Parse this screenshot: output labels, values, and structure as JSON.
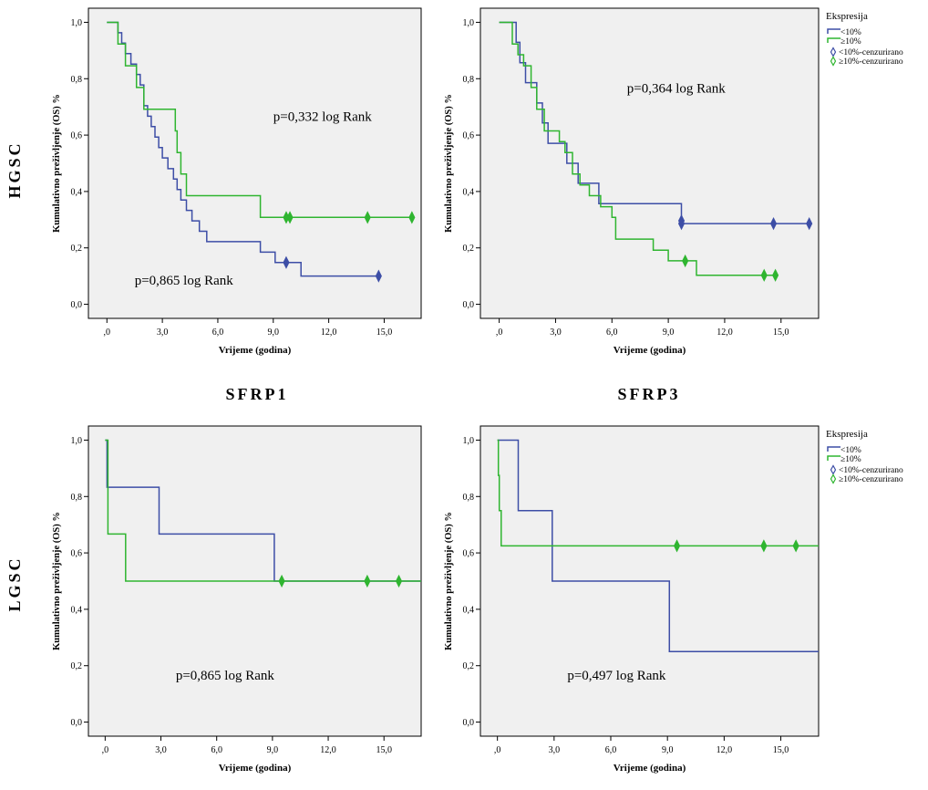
{
  "row_labels": [
    "HGSC",
    "LGSC"
  ],
  "col_labels": [
    "SFRP1",
    "SFRP3"
  ],
  "legend": {
    "title": "Ekspresija",
    "items": [
      "<10%",
      "≥10%",
      "<10%-cenzurirano",
      "≥10%-cenzurirano"
    ]
  },
  "colors": {
    "low": "#3d4ea6",
    "high": "#2fb530",
    "plot_bg": "#f0f0f0"
  },
  "chart_data": [
    {
      "type": "line",
      "step": true,
      "xlabel": "Vrijeme (godina)",
      "ylabel": "Kumulativno preživljenje (OS) %",
      "xlim": [
        -1,
        17
      ],
      "ylim": [
        -0.05,
        1.05
      ],
      "xticks": [
        0,
        3,
        6,
        9,
        12,
        15
      ],
      "xtick_labels": [
        ",0",
        "3,0",
        "6,0",
        "9,0",
        "12,0",
        "15,0"
      ],
      "yticks": [
        0,
        0.2,
        0.4,
        0.6,
        0.8,
        1.0
      ],
      "ytick_labels": [
        "0,0",
        "0,2",
        "0,4",
        "0,6",
        "0,8",
        "1,0"
      ],
      "annotations": [
        {
          "text": "p=0,332 log Rank",
          "x": 9,
          "y": 0.65
        },
        {
          "text": "p=0,865 log Rank",
          "x": 1.5,
          "y": 0.07
        }
      ],
      "series": [
        {
          "name": "<10%",
          "color": "#3d4ea6",
          "x": [
            0,
            0.6,
            0.8,
            1.0,
            1.3,
            1.6,
            1.8,
            2.0,
            2.2,
            2.4,
            2.6,
            2.8,
            3.0,
            3.3,
            3.6,
            3.8,
            4.0,
            4.3,
            4.6,
            5.0,
            5.4,
            5.7,
            6.0,
            6.2,
            6.5,
            8.3,
            9.1,
            10.5,
            14.7
          ],
          "y": [
            1.0,
            0.963,
            0.926,
            0.889,
            0.852,
            0.815,
            0.778,
            0.704,
            0.667,
            0.63,
            0.593,
            0.556,
            0.519,
            0.481,
            0.444,
            0.407,
            0.37,
            0.333,
            0.296,
            0.259,
            0.222,
            0.222,
            0.222,
            0.222,
            0.222,
            0.185,
            0.148,
            0.1,
            0.1
          ],
          "censored": [
            {
              "x": 9.7,
              "y": 0.148
            },
            {
              "x": 14.7,
              "y": 0.1
            }
          ]
        },
        {
          "name": "≥10%",
          "color": "#2fb530",
          "x": [
            0,
            0.6,
            1.0,
            1.6,
            2.0,
            2.2,
            3.7,
            3.8,
            4.0,
            4.3,
            4.6,
            8.3,
            16.5
          ],
          "y": [
            1.0,
            0.923,
            0.846,
            0.769,
            0.692,
            0.692,
            0.615,
            0.538,
            0.462,
            0.385,
            0.385,
            0.308,
            0.308
          ],
          "censored": [
            {
              "x": 9.7,
              "y": 0.308
            },
            {
              "x": 9.9,
              "y": 0.308
            },
            {
              "x": 14.1,
              "y": 0.308
            },
            {
              "x": 16.5,
              "y": 0.308
            }
          ]
        }
      ]
    },
    {
      "type": "line",
      "step": true,
      "xlabel": "Vrijeme (godina)",
      "ylabel": "Kumulativno preživljenje (OS) %",
      "xlim": [
        -1,
        17
      ],
      "ylim": [
        -0.05,
        1.05
      ],
      "xticks": [
        0,
        3,
        6,
        9,
        12,
        15
      ],
      "xtick_labels": [
        ",0",
        "3,0",
        "6,0",
        "9,0",
        "12,0",
        "15,0"
      ],
      "yticks": [
        0,
        0.2,
        0.4,
        0.6,
        0.8,
        1.0
      ],
      "ytick_labels": [
        "0,0",
        "0,2",
        "0,4",
        "0,6",
        "0,8",
        "1,0"
      ],
      "annotations": [
        {
          "text": "p=0,364 log Rank",
          "x": 6.8,
          "y": 0.75
        }
      ],
      "series": [
        {
          "name": "<10%",
          "color": "#3d4ea6",
          "x": [
            0,
            0.9,
            1.1,
            1.4,
            1.6,
            2.0,
            2.3,
            2.6,
            3.0,
            3.6,
            4.2,
            5.3,
            9.7,
            16.5
          ],
          "y": [
            1.0,
            0.929,
            0.857,
            0.786,
            0.786,
            0.714,
            0.643,
            0.571,
            0.571,
            0.5,
            0.429,
            0.357,
            0.286,
            0.286
          ],
          "censored": [
            {
              "x": 9.7,
              "y": 0.286
            },
            {
              "x": 9.7,
              "y": 0.296
            },
            {
              "x": 14.6,
              "y": 0.286
            },
            {
              "x": 16.5,
              "y": 0.286
            }
          ]
        },
        {
          "name": "≥10%",
          "color": "#2fb530",
          "x": [
            0,
            0.7,
            1.0,
            1.3,
            1.7,
            2.0,
            2.4,
            3.2,
            3.5,
            3.9,
            4.3,
            4.8,
            5.4,
            6.0,
            6.2,
            8.2,
            9.0,
            10.5,
            14.7
          ],
          "y": [
            1.0,
            0.923,
            0.885,
            0.846,
            0.769,
            0.692,
            0.615,
            0.577,
            0.538,
            0.462,
            0.423,
            0.385,
            0.346,
            0.308,
            0.231,
            0.192,
            0.154,
            0.103,
            0.103
          ],
          "censored": [
            {
              "x": 9.9,
              "y": 0.154
            },
            {
              "x": 14.1,
              "y": 0.103
            },
            {
              "x": 14.7,
              "y": 0.103
            }
          ]
        }
      ]
    },
    {
      "type": "line",
      "step": true,
      "xlabel": "Vrijeme (godina)",
      "ylabel": "Kumulativno preživljenje (OS) %",
      "xlim": [
        -0.9,
        17
      ],
      "ylim": [
        -0.05,
        1.05
      ],
      "xticks": [
        0,
        3,
        6,
        9,
        12,
        15
      ],
      "xtick_labels": [
        ",0",
        "3,0",
        "6,0",
        "9,0",
        "12,0",
        "15,0"
      ],
      "yticks": [
        0,
        0.2,
        0.4,
        0.6,
        0.8,
        1.0
      ],
      "ytick_labels": [
        "0,0",
        "0,2",
        "0,4",
        "0,6",
        "0,8",
        "1,0"
      ],
      "annotations": [
        {
          "text": "p=0,865 log Rank",
          "x": 3.8,
          "y": 0.15
        }
      ],
      "series": [
        {
          "name": "<10%",
          "color": "#3d4ea6",
          "x": [
            0,
            0.1,
            2.9,
            9.1,
            17
          ],
          "y": [
            1.0,
            0.833,
            0.667,
            0.5,
            0.5
          ],
          "censored": []
        },
        {
          "name": "≥10%",
          "color": "#2fb530",
          "x": [
            0,
            0.15,
            1.1,
            17
          ],
          "y": [
            1.0,
            0.667,
            0.5,
            0.5
          ],
          "censored": [
            {
              "x": 9.5,
              "y": 0.5
            },
            {
              "x": 14.1,
              "y": 0.5
            },
            {
              "x": 15.8,
              "y": 0.5
            }
          ]
        }
      ]
    },
    {
      "type": "line",
      "step": true,
      "xlabel": "Vrijeme (godina)",
      "ylabel": "Kumulativno preživljenje (OS) %",
      "xlim": [
        -0.9,
        17
      ],
      "ylim": [
        -0.05,
        1.05
      ],
      "xticks": [
        0,
        3,
        6,
        9,
        12,
        15
      ],
      "xtick_labels": [
        ",0",
        "3,0",
        "6,0",
        "9,0",
        "12,0",
        "15,0"
      ],
      "yticks": [
        0,
        0.2,
        0.4,
        0.6,
        0.8,
        1.0
      ],
      "ytick_labels": [
        "0,0",
        "0,2",
        "0,4",
        "0,6",
        "0,8",
        "1,0"
      ],
      "annotations": [
        {
          "text": "p=0,497 log Rank",
          "x": 3.7,
          "y": 0.15
        }
      ],
      "series": [
        {
          "name": "<10%",
          "color": "#3d4ea6",
          "x": [
            0,
            1.1,
            2.9,
            9.1,
            17
          ],
          "y": [
            1.0,
            0.75,
            0.5,
            0.25,
            0.25
          ],
          "censored": []
        },
        {
          "name": "≥10%",
          "color": "#2fb530",
          "x": [
            0,
            0.05,
            0.1,
            0.2,
            17
          ],
          "y": [
            1.0,
            0.875,
            0.75,
            0.625,
            0.625
          ],
          "censored": [
            {
              "x": 9.5,
              "y": 0.625
            },
            {
              "x": 14.1,
              "y": 0.625
            },
            {
              "x": 15.8,
              "y": 0.625
            }
          ]
        }
      ]
    }
  ]
}
